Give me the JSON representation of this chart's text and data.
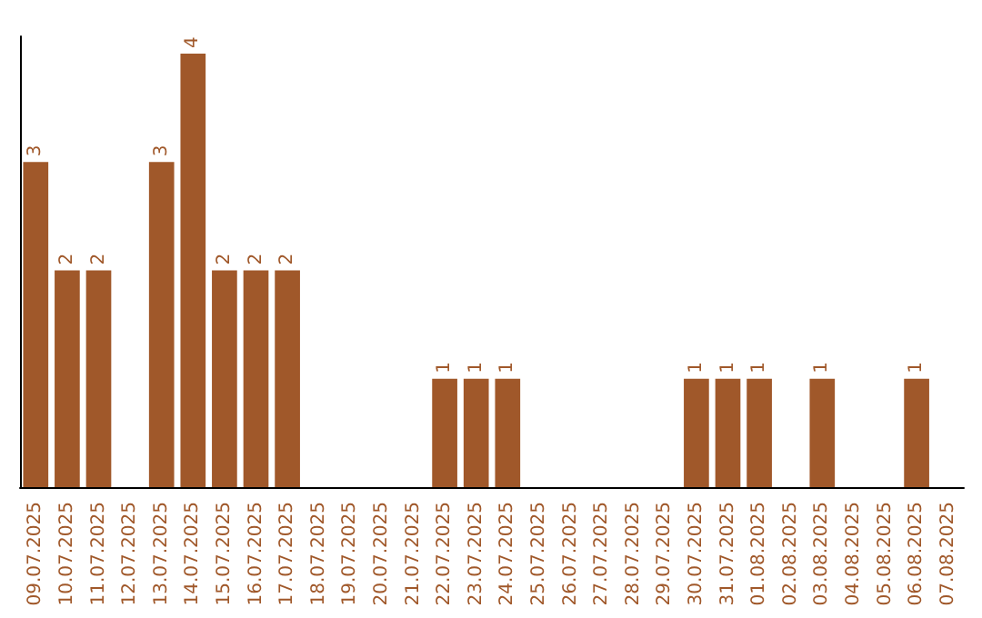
{
  "chart_data": {
    "type": "bar",
    "categories": [
      "09.07.2025",
      "10.07.2025",
      "11.07.2025",
      "12.07.2025",
      "13.07.2025",
      "14.07.2025",
      "15.07.2025",
      "16.07.2025",
      "17.07.2025",
      "18.07.2025",
      "19.07.2025",
      "20.07.2025",
      "21.07.2025",
      "22.07.2025",
      "23.07.2025",
      "24.07.2025",
      "25.07.2025",
      "26.07.2025",
      "27.07.2025",
      "28.07.2025",
      "29.07.2025",
      "30.07.2025",
      "31.07.2025",
      "01.08.2025",
      "02.08.2025",
      "03.08.2025",
      "04.08.2025",
      "05.08.2025",
      "06.08.2025",
      "07.08.2025"
    ],
    "values": [
      3,
      2,
      2,
      0,
      3,
      4,
      2,
      2,
      2,
      0,
      0,
      0,
      0,
      1,
      1,
      1,
      0,
      0,
      0,
      0,
      0,
      1,
      1,
      1,
      0,
      1,
      0,
      0,
      1,
      0
    ],
    "value_labels": [
      "3",
      "2",
      "2",
      null,
      "3",
      "4",
      "2",
      "2",
      "2",
      null,
      null,
      null,
      null,
      "1",
      "1",
      "1",
      null,
      null,
      null,
      null,
      null,
      "1",
      "1",
      "1",
      null,
      "1",
      null,
      null,
      "1",
      null
    ],
    "color": "#a0582a",
    "tick_labels": "x",
    "grid": false
  }
}
